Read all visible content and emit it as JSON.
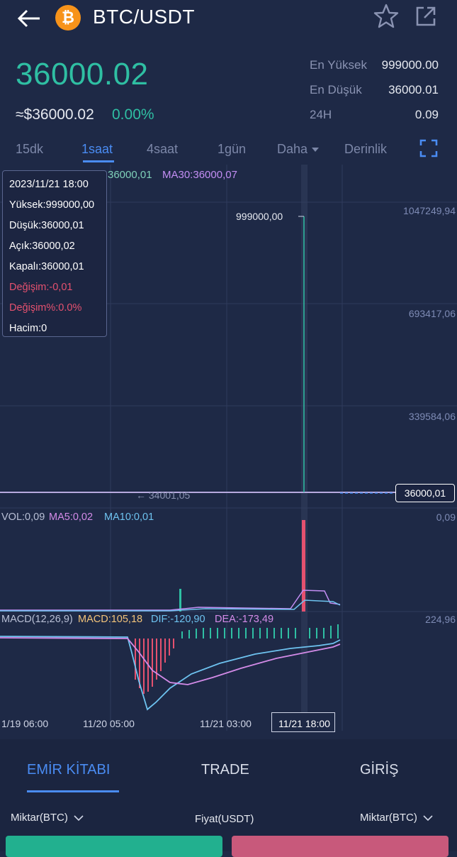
{
  "header": {
    "pair": "BTC/USDT",
    "coin_symbol": "₿",
    "accent_color": "#f7931a"
  },
  "ticker": {
    "last_price": "36000.02",
    "usd_value": "≈$36000.02",
    "change_pct": "0.00%",
    "stats": [
      {
        "label": "En Yüksek",
        "value": "999000.00"
      },
      {
        "label": "En Düşük",
        "value": "36000.01"
      },
      {
        "label": "24H",
        "value": "0.09"
      }
    ]
  },
  "timeframes": [
    "15dk",
    "1saat",
    "4saat",
    "1gün",
    "Daha",
    "Derinlik"
  ],
  "active_timeframe": "1saat",
  "chart": {
    "ma_legend": [
      {
        "text": "36000,01",
        "color": "#7fd1b9"
      },
      {
        "text": "MA30:36000,07",
        "color": "#c38ef4"
      }
    ],
    "y_axis": [
      "1047249,94",
      "693417,06",
      "339584,06"
    ],
    "high_marker": "999000,00",
    "low_marker": "← 34001,05",
    "current_price_tag": "36000,01",
    "tooltip": {
      "time": "2023/11/21 18:00",
      "high": "Yüksek:999000,00",
      "low": "Düşük:36000,01",
      "open": "Açık:36000,02",
      "close": "Kapalı:36000,01",
      "change": "Değişim:-0,01",
      "change_pct": "Değişim%:0.0%",
      "volume": "Hacim:0"
    },
    "vol_legend": {
      "vol": "VOL:0,09",
      "ma5": "MA5:0,02",
      "ma10": "MA10:0,01"
    },
    "vol_axis": "0,09",
    "macd_legend": {
      "params": "MACD(12,26,9)",
      "macd": "MACD:105,18",
      "dif": "DIF:-120,90",
      "dea": "DEA:-173,49"
    },
    "macd_axis": "224,96",
    "x_axis": [
      "1/19 06:00",
      "11/20 05:00",
      "11/21 03:00",
      "11/21 18:00"
    ],
    "colors": {
      "up": "#2fbfa3",
      "down": "#e5516f",
      "grid": "#2f3a5c"
    }
  },
  "bottom_tabs": [
    "EMİR KİTABI",
    "TRADE",
    "GİRİŞ"
  ],
  "active_bottom_tab": "EMİR KİTABI",
  "order_book": {
    "col_amount_left": "Miktar(BTC)",
    "col_price": "Fiyat(USDT)",
    "col_amount_right": "Miktar(BTC)"
  }
}
